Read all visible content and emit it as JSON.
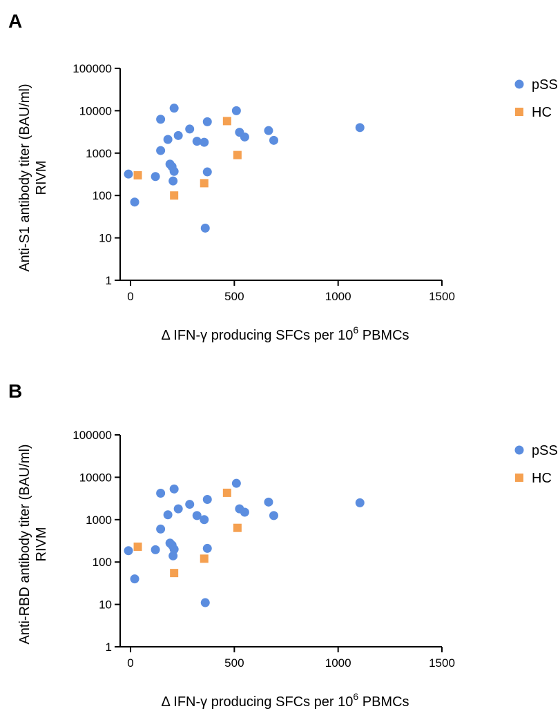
{
  "colors": {
    "pSS": "#5b8ddf",
    "HC": "#f5a050"
  },
  "chart_data": [
    {
      "type": "scatter",
      "panel": "A",
      "xlabel": {
        "pre": "Δ IFN-γ producing SFCs per 10",
        "sup": "6",
        "post": " PBMCs"
      },
      "ylabel_lines": [
        "Anti-S1 antibody titer (BAU/ml)",
        "RIVM"
      ],
      "x_ticks": [
        0,
        500,
        1000,
        1500
      ],
      "x_tick_labels": [
        "0",
        "500",
        "1000",
        "1500"
      ],
      "xlim": [
        -50,
        1500
      ],
      "y_scale": "log",
      "y_ticks": [
        1,
        10,
        100,
        1000,
        10000,
        100000
      ],
      "y_tick_labels": [
        "1",
        "10",
        "100",
        "1000",
        "10000",
        "100000"
      ],
      "ylim": [
        1,
        100000
      ],
      "legend": "right",
      "series": [
        {
          "name": "pSS",
          "marker": "circle",
          "points": [
            [
              -10,
              320
            ],
            [
              20,
              70
            ],
            [
              120,
              280
            ],
            [
              145,
              6300
            ],
            [
              145,
              1150
            ],
            [
              180,
              2100
            ],
            [
              190,
              550
            ],
            [
              200,
              480
            ],
            [
              205,
              220
            ],
            [
              210,
              370
            ],
            [
              210,
              11500
            ],
            [
              230,
              2600
            ],
            [
              285,
              3700
            ],
            [
              320,
              1900
            ],
            [
              355,
              1800
            ],
            [
              360,
              17
            ],
            [
              370,
              5500
            ],
            [
              370,
              360
            ],
            [
              510,
              10000
            ],
            [
              525,
              3100
            ],
            [
              550,
              2400
            ],
            [
              665,
              3400
            ],
            [
              690,
              2000
            ],
            [
              1105,
              4000
            ]
          ]
        },
        {
          "name": "HC",
          "marker": "square",
          "points": [
            [
              35,
              300
            ],
            [
              210,
              100
            ],
            [
              355,
              195
            ],
            [
              465,
              5700
            ],
            [
              515,
              900
            ]
          ]
        }
      ]
    },
    {
      "type": "scatter",
      "panel": "B",
      "xlabel": {
        "pre": "Δ IFN-γ producing SFCs per 10",
        "sup": "6",
        "post": " PBMCs"
      },
      "ylabel_lines": [
        "Anti-RBD antibody titer (BAU/ml)",
        "RIVM"
      ],
      "x_ticks": [
        0,
        500,
        1000,
        1500
      ],
      "x_tick_labels": [
        "0",
        "500",
        "1000",
        "1500"
      ],
      "xlim": [
        -50,
        1500
      ],
      "y_scale": "log",
      "y_ticks": [
        1,
        10,
        100,
        1000,
        10000,
        100000
      ],
      "y_tick_labels": [
        "1",
        "10",
        "100",
        "1000",
        "10000",
        "100000"
      ],
      "ylim": [
        1,
        100000
      ],
      "legend": "right",
      "series": [
        {
          "name": "pSS",
          "marker": "circle",
          "points": [
            [
              -10,
              185
            ],
            [
              20,
              40
            ],
            [
              120,
              195
            ],
            [
              145,
              4200
            ],
            [
              145,
              600
            ],
            [
              180,
              1300
            ],
            [
              190,
              280
            ],
            [
              200,
              250
            ],
            [
              205,
              140
            ],
            [
              210,
              200
            ],
            [
              210,
              5300
            ],
            [
              230,
              1800
            ],
            [
              285,
              2300
            ],
            [
              320,
              1250
            ],
            [
              355,
              1000
            ],
            [
              360,
              11
            ],
            [
              370,
              3000
            ],
            [
              370,
              210
            ],
            [
              510,
              7200
            ],
            [
              525,
              1800
            ],
            [
              550,
              1500
            ],
            [
              665,
              2600
            ],
            [
              690,
              1250
            ],
            [
              1105,
              2500
            ]
          ]
        },
        {
          "name": "HC",
          "marker": "square",
          "points": [
            [
              35,
              230
            ],
            [
              210,
              55
            ],
            [
              355,
              120
            ],
            [
              465,
              4300
            ],
            [
              515,
              640
            ]
          ]
        }
      ]
    }
  ]
}
